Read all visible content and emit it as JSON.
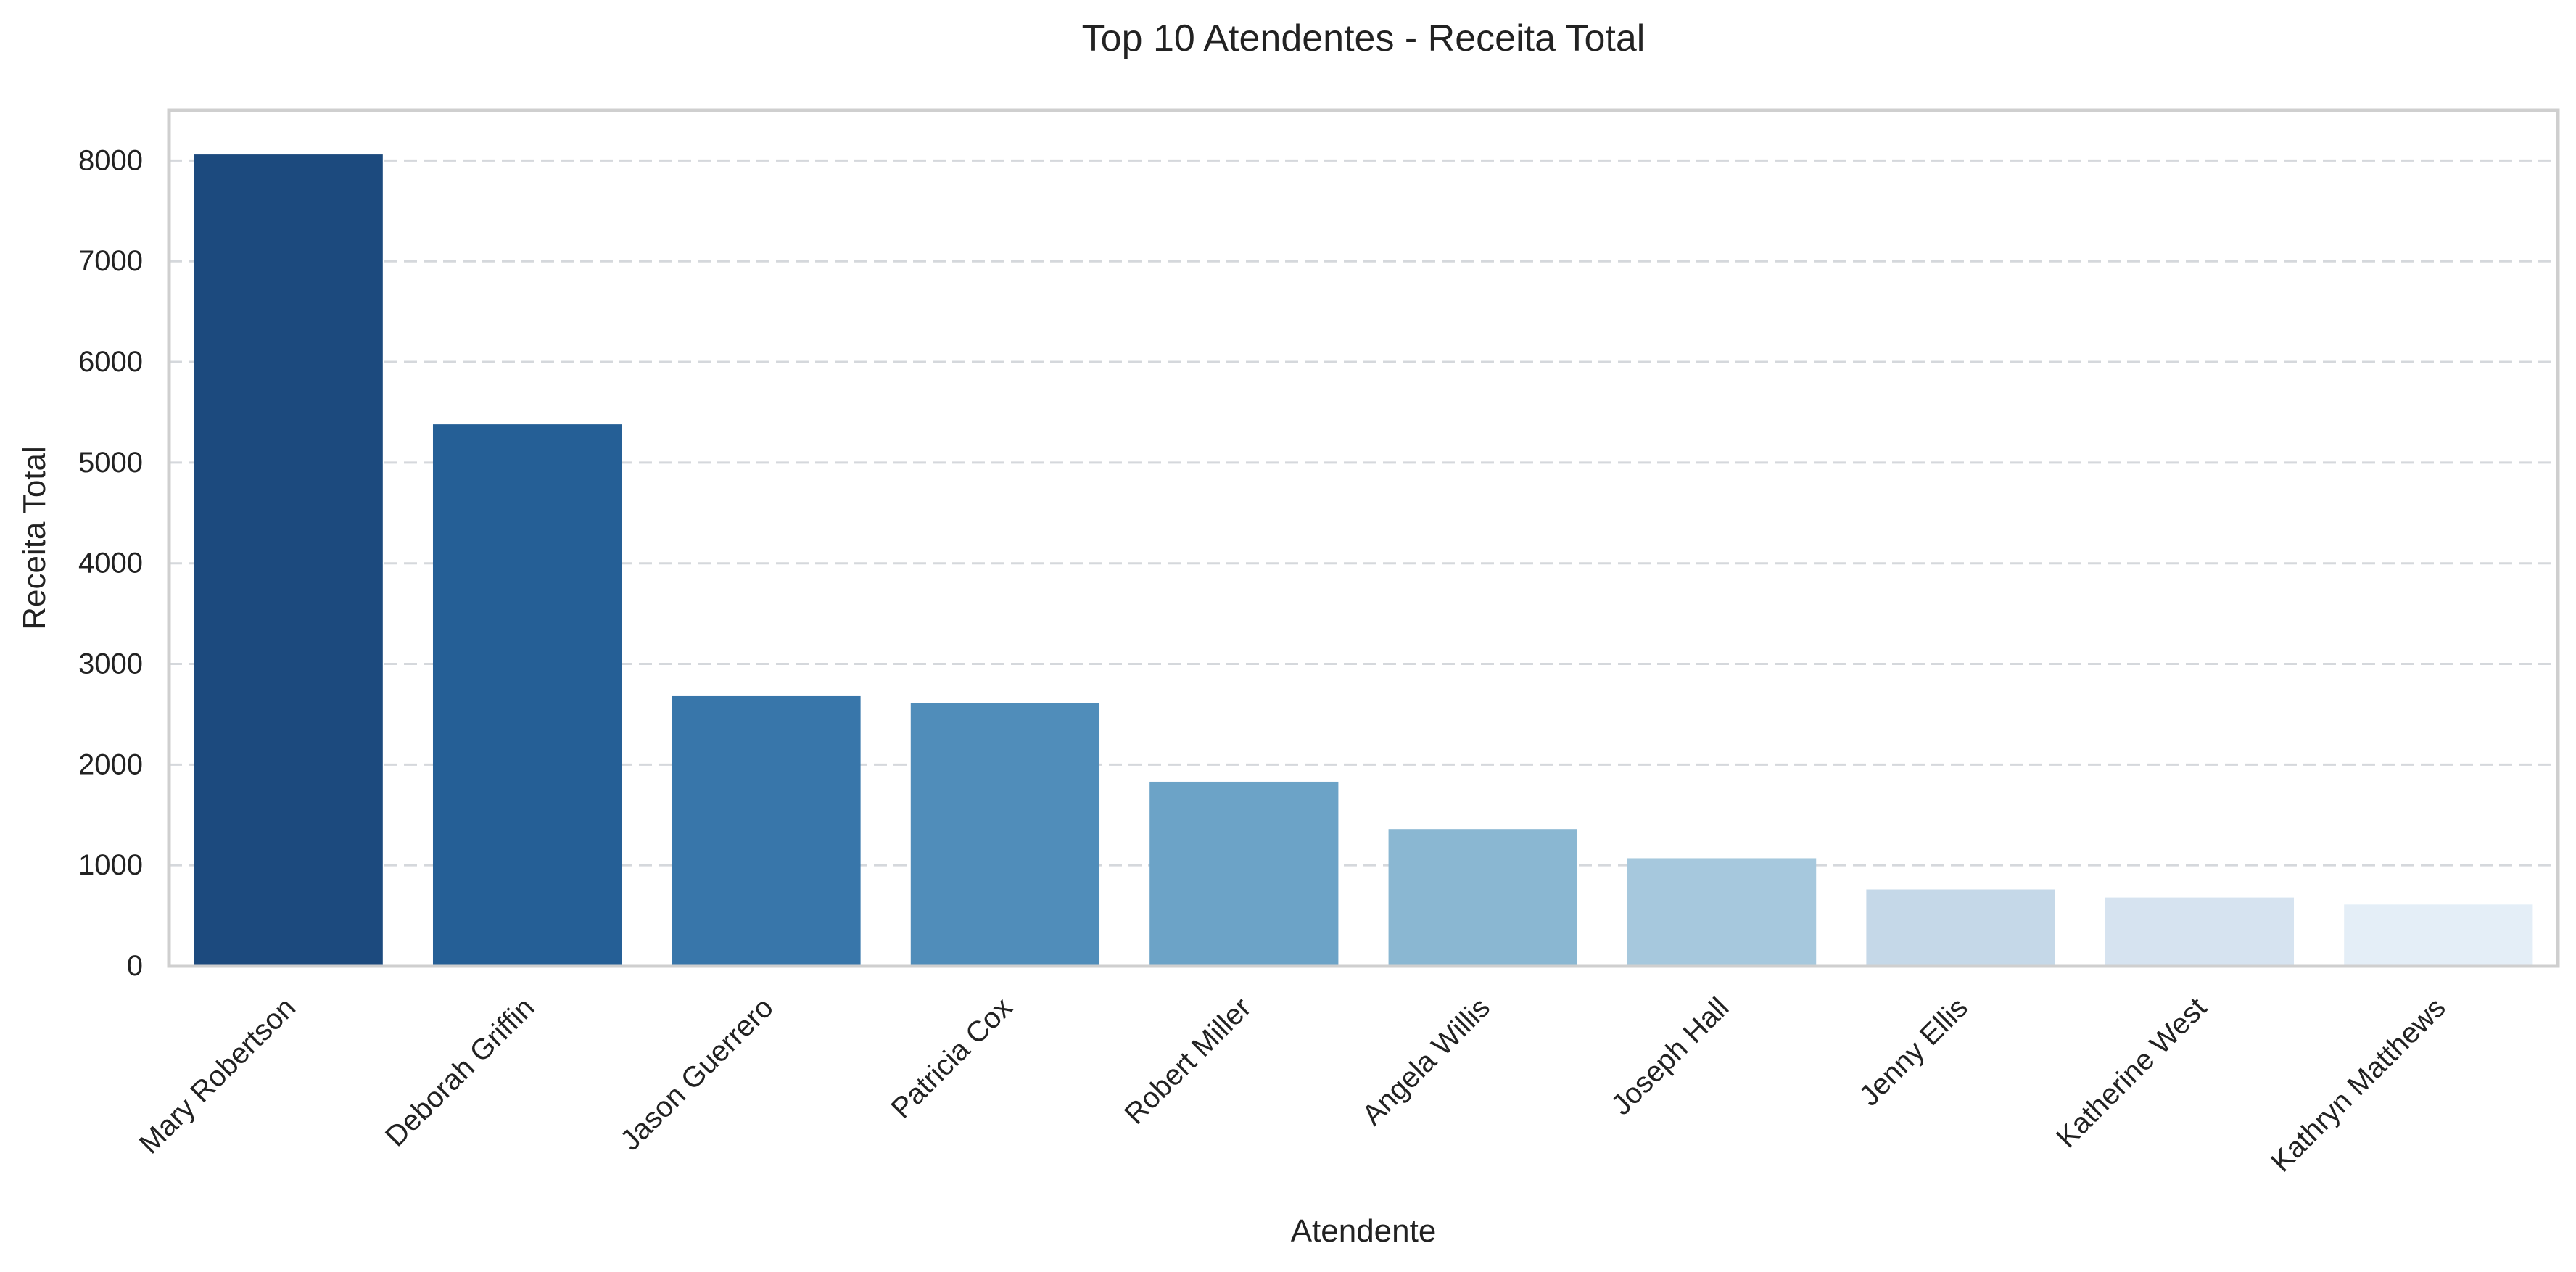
{
  "chart_data": {
    "type": "bar",
    "title": "Top 10 Atendentes - Receita Total",
    "xlabel": "Atendente",
    "ylabel": "Receita Total",
    "categories": [
      "Mary Robertson",
      "Deborah Griffin",
      "Jason Guerrero",
      "Patricia Cox",
      "Robert Miller",
      "Angela Willis",
      "Joseph Hall",
      "Jenny Ellis",
      "Katherine West",
      "Kathryn Matthews"
    ],
    "values": [
      8060,
      5380,
      2680,
      2610,
      1830,
      1360,
      1070,
      760,
      680,
      610
    ],
    "colors": [
      "#1c4a7e",
      "#255f96",
      "#3876aa",
      "#508dba",
      "#6ca3c7",
      "#8ab7d2",
      "#a6c8dd",
      "#c5d8e8",
      "#d6e3f0",
      "#e4eef7"
    ],
    "ylim": [
      0,
      8500
    ],
    "yticks": [
      0,
      1000,
      2000,
      3000,
      4000,
      5000,
      6000,
      7000,
      8000
    ],
    "grid": true,
    "grid_axis": "y",
    "grid_style": "dashed"
  }
}
